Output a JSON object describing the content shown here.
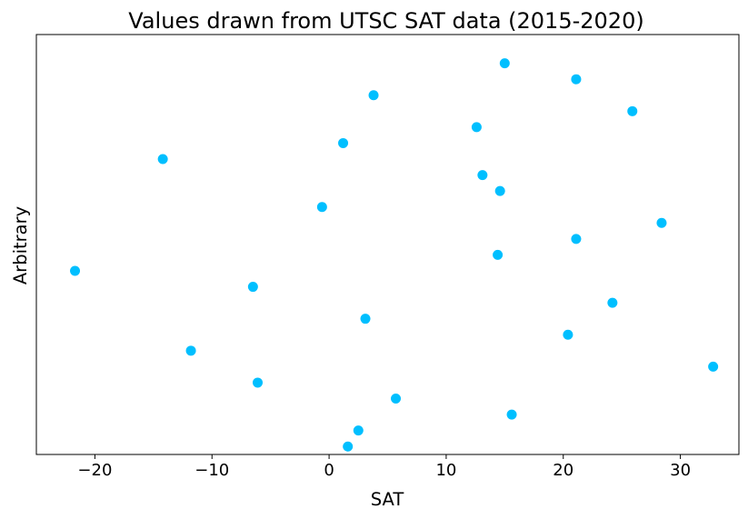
{
  "chart_data": {
    "type": "scatter",
    "title": "Values drawn from UTSC SAT data (2015-2020)",
    "xlabel": "SAT",
    "ylabel": "Arbitrary",
    "xlim": [
      -25,
      35
    ],
    "ylim": [
      -0.5,
      25.8
    ],
    "xticks": [
      -20,
      -10,
      0,
      10,
      20,
      30
    ],
    "xtick_labels": [
      "−20",
      "−10",
      "0",
      "10",
      "20",
      "30"
    ],
    "yticks_visible": false,
    "grid": false,
    "legend": "none",
    "marker_color": "#00bfff",
    "points": [
      {
        "x": 1.6,
        "y": 0
      },
      {
        "x": 2.5,
        "y": 1
      },
      {
        "x": 15.6,
        "y": 2
      },
      {
        "x": 5.7,
        "y": 3
      },
      {
        "x": -6.1,
        "y": 4
      },
      {
        "x": 32.8,
        "y": 5
      },
      {
        "x": -11.8,
        "y": 6
      },
      {
        "x": 20.4,
        "y": 7
      },
      {
        "x": 3.1,
        "y": 8
      },
      {
        "x": 24.2,
        "y": 9
      },
      {
        "x": -6.5,
        "y": 10
      },
      {
        "x": -21.7,
        "y": 11
      },
      {
        "x": 14.4,
        "y": 12
      },
      {
        "x": 21.1,
        "y": 13
      },
      {
        "x": 28.4,
        "y": 14
      },
      {
        "x": -0.6,
        "y": 15
      },
      {
        "x": 14.6,
        "y": 16
      },
      {
        "x": 13.1,
        "y": 17
      },
      {
        "x": -14.2,
        "y": 18
      },
      {
        "x": 1.2,
        "y": 19
      },
      {
        "x": 12.6,
        "y": 20
      },
      {
        "x": 25.9,
        "y": 21
      },
      {
        "x": 3.8,
        "y": 22
      },
      {
        "x": 21.1,
        "y": 23
      },
      {
        "x": 15.0,
        "y": 24
      }
    ]
  }
}
